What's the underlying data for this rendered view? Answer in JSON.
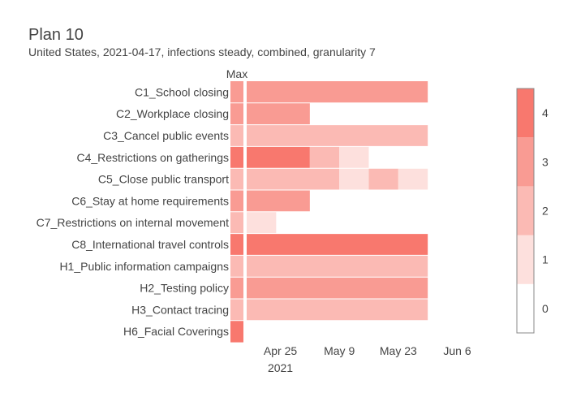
{
  "chart_data": {
    "type": "heatmap",
    "title": "Plan 10",
    "subtitle": "United States, 2021-04-17, infections steady, combined, granularity 7",
    "max_column_label": "Max",
    "colors": {
      "level_0": "#ffffff",
      "level_1": "#fde0dd",
      "level_2": "#fbbab4",
      "level_3": "#f99b93",
      "level_4": "#f8786e",
      "colorbar_border": "#888888",
      "separator": "#ffffff"
    },
    "x_start": "2021-04-17",
    "x_end": "2021-06-12",
    "x_ticks": [
      {
        "date": "2021-04-25",
        "label": "Apr 25",
        "sublabel": "2021"
      },
      {
        "date": "2021-05-09",
        "label": "May 9",
        "sublabel": ""
      },
      {
        "date": "2021-05-23",
        "label": "May 23",
        "sublabel": ""
      },
      {
        "date": "2021-06-06",
        "label": "Jun 6",
        "sublabel": ""
      }
    ],
    "colorbar": {
      "min": 0,
      "max": 4,
      "ticks": [
        0,
        1,
        2,
        3,
        4
      ]
    },
    "rows": [
      {
        "label": "C1_School closing",
        "max": 3,
        "segments": [
          {
            "start": "2021-04-17",
            "end": "2021-05-30",
            "value": 3
          }
        ]
      },
      {
        "label": "C2_Workplace closing",
        "max": 3,
        "segments": [
          {
            "start": "2021-04-17",
            "end": "2021-05-02",
            "value": 3
          }
        ]
      },
      {
        "label": "C3_Cancel public events",
        "max": 2,
        "segments": [
          {
            "start": "2021-04-17",
            "end": "2021-05-30",
            "value": 2
          }
        ]
      },
      {
        "label": "C4_Restrictions on gatherings",
        "max": 4,
        "segments": [
          {
            "start": "2021-04-17",
            "end": "2021-05-02",
            "value": 4
          },
          {
            "start": "2021-05-02",
            "end": "2021-05-09",
            "value": 2
          },
          {
            "start": "2021-05-09",
            "end": "2021-05-16",
            "value": 1
          }
        ]
      },
      {
        "label": "C5_Close public transport",
        "max": 2,
        "segments": [
          {
            "start": "2021-04-17",
            "end": "2021-05-09",
            "value": 2
          },
          {
            "start": "2021-05-09",
            "end": "2021-05-16",
            "value": 1
          },
          {
            "start": "2021-05-16",
            "end": "2021-05-23",
            "value": 2
          },
          {
            "start": "2021-05-23",
            "end": "2021-05-30",
            "value": 1
          }
        ]
      },
      {
        "label": "C6_Stay at home requirements",
        "max": 3,
        "segments": [
          {
            "start": "2021-04-17",
            "end": "2021-05-02",
            "value": 3
          }
        ]
      },
      {
        "label": "C7_Restrictions on internal movement",
        "max": 2,
        "segments": [
          {
            "start": "2021-04-17",
            "end": "2021-04-24",
            "value": 1
          }
        ]
      },
      {
        "label": "C8_International travel controls",
        "max": 4,
        "segments": [
          {
            "start": "2021-04-17",
            "end": "2021-05-30",
            "value": 4
          }
        ]
      },
      {
        "label": "H1_Public information campaigns",
        "max": 2,
        "segments": [
          {
            "start": "2021-04-17",
            "end": "2021-05-30",
            "value": 2
          }
        ]
      },
      {
        "label": "H2_Testing policy",
        "max": 3,
        "segments": [
          {
            "start": "2021-04-17",
            "end": "2021-05-30",
            "value": 3
          }
        ]
      },
      {
        "label": "H3_Contact tracing",
        "max": 2,
        "segments": [
          {
            "start": "2021-04-17",
            "end": "2021-05-30",
            "value": 2
          }
        ]
      },
      {
        "label": "H6_Facial Coverings",
        "max": 4,
        "segments": []
      }
    ]
  }
}
